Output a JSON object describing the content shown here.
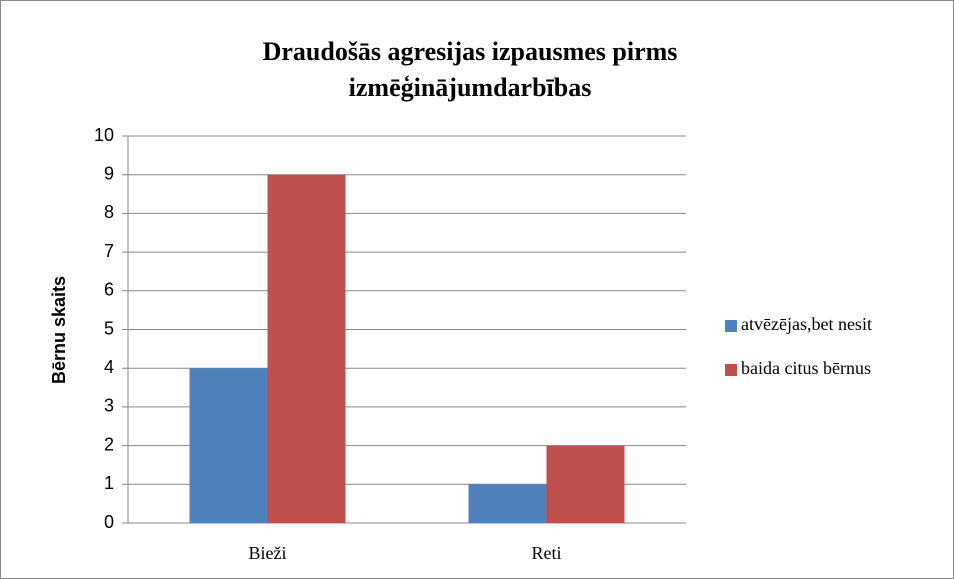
{
  "chart_data": {
    "type": "bar",
    "title": "Draudošās agresijas izpausmes pirms izmēģinājumdarbības",
    "y_label": "Bērnu skaits",
    "categories": [
      "Bieži",
      "Reti"
    ],
    "series": [
      {
        "name": "atvēzējas,bet nesit",
        "color": "#4f81bd",
        "values": [
          4,
          1
        ]
      },
      {
        "name": "baida citus bērnus",
        "color": "#c0504d",
        "values": [
          9,
          2
        ]
      }
    ],
    "ylim": [
      0,
      10
    ],
    "yticks": [
      0,
      1,
      2,
      3,
      4,
      5,
      6,
      7,
      8,
      9,
      10
    ],
    "grid": true,
    "legend": "right"
  }
}
